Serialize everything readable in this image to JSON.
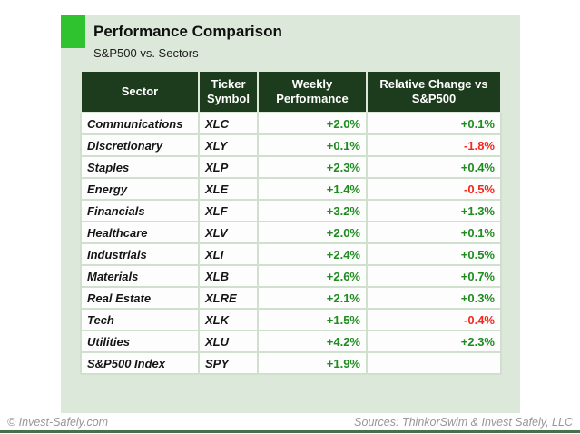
{
  "page": {
    "title": "Performance Comparison",
    "subtitle": "S&P500 vs. Sectors",
    "footer_left": "© Invest-Safely.com",
    "footer_right": "Sources: ThinkorSwim & Invest Safely, LLC"
  },
  "colors": {
    "accent_square": "#2fc42f",
    "panel_background": "#dce8d9",
    "header_background": "#1d3b1d",
    "header_text": "#ffffff",
    "positive_value": "#1e8c1f",
    "negative_value": "#f5271b",
    "bottom_bar": "#47714d"
  },
  "chart_data": {
    "type": "table",
    "title": "Performance Comparison",
    "subtitle": "S&P500 vs. Sectors",
    "columns": [
      "Sector",
      "Ticker Symbol",
      "Weekly Performance",
      "Relative Change vs S&P500"
    ],
    "rows": [
      {
        "sector": "Communications",
        "ticker": "XLC",
        "weekly": "+2.0%",
        "relative": "+0.1%"
      },
      {
        "sector": "Discretionary",
        "ticker": "XLY",
        "weekly": "+0.1%",
        "relative": "-1.8%"
      },
      {
        "sector": "Staples",
        "ticker": "XLP",
        "weekly": "+2.3%",
        "relative": "+0.4%"
      },
      {
        "sector": "Energy",
        "ticker": "XLE",
        "weekly": "+1.4%",
        "relative": "-0.5%"
      },
      {
        "sector": "Financials",
        "ticker": "XLF",
        "weekly": "+3.2%",
        "relative": "+1.3%"
      },
      {
        "sector": "Healthcare",
        "ticker": "XLV",
        "weekly": "+2.0%",
        "relative": "+0.1%"
      },
      {
        "sector": "Industrials",
        "ticker": "XLI",
        "weekly": "+2.4%",
        "relative": "+0.5%"
      },
      {
        "sector": "Materials",
        "ticker": "XLB",
        "weekly": "+2.6%",
        "relative": "+0.7%"
      },
      {
        "sector": "Real Estate",
        "ticker": "XLRE",
        "weekly": "+2.1%",
        "relative": "+0.3%"
      },
      {
        "sector": "Tech",
        "ticker": "XLK",
        "weekly": "+1.5%",
        "relative": "-0.4%"
      },
      {
        "sector": "Utilities",
        "ticker": "XLU",
        "weekly": "+4.2%",
        "relative": "+2.3%"
      }
    ],
    "total_row": {
      "sector": "S&P500 Index",
      "ticker": "SPY",
      "weekly": "+1.9%",
      "relative": ""
    }
  }
}
